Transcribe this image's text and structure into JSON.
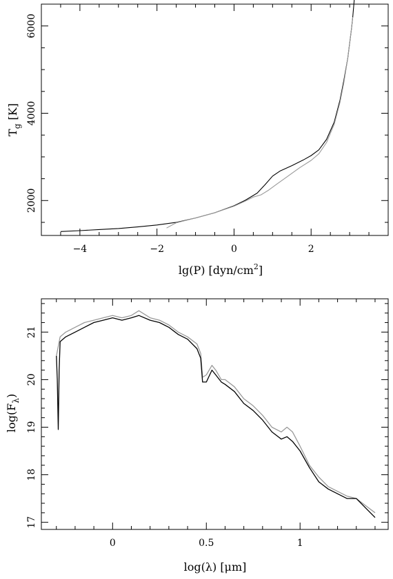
{
  "chart_data": [
    {
      "type": "line",
      "xlabel": "lg(P) [dyn/cm²]",
      "xlabel_parts": {
        "pre": "lg(P) [dyn/cm",
        "sup": "2",
        "post": "]"
      },
      "ylabel": "T_g [K]",
      "ylabel_parts": {
        "main": "T",
        "sub": "g",
        "unit": " [K]"
      },
      "xlim": [
        -5,
        4
      ],
      "ylim": [
        1200,
        6500
      ],
      "xticks_major": [
        -4,
        -2,
        0,
        2
      ],
      "xticks_minor_step": 0.5,
      "yticks_major": [
        2000,
        4000,
        6000
      ],
      "yticks_minor_step": 500,
      "series": [
        {
          "color": "#000000",
          "x": [
            -4.5,
            -4.0,
            -3.5,
            -3.0,
            -2.5,
            -2.0,
            -1.5,
            -1.0,
            -0.5,
            0.0,
            0.3,
            0.6,
            0.8,
            1.0,
            1.2,
            1.5,
            1.8,
            2.0,
            2.2,
            2.4,
            2.6,
            2.75,
            2.85,
            2.95,
            3.0,
            3.05,
            3.08,
            3.1,
            3.12
          ],
          "y": [
            1290,
            1310,
            1335,
            1360,
            1395,
            1440,
            1500,
            1600,
            1720,
            1880,
            2010,
            2170,
            2360,
            2560,
            2680,
            2800,
            2930,
            3030,
            3160,
            3400,
            3800,
            4300,
            4750,
            5250,
            5600,
            5950,
            6200,
            6400,
            6600
          ]
        },
        {
          "color": "#999999",
          "x": [
            -1.75,
            -1.5,
            -1.0,
            -0.5,
            0.0,
            0.3,
            0.5,
            0.7,
            0.9,
            1.1,
            1.4,
            1.7,
            2.0,
            2.2,
            2.4,
            2.6,
            2.75,
            2.85,
            2.95,
            3.0,
            3.05,
            3.08
          ],
          "y": [
            1370,
            1490,
            1600,
            1720,
            1870,
            1990,
            2080,
            2130,
            2240,
            2370,
            2560,
            2750,
            2920,
            3070,
            3330,
            3750,
            4250,
            4700,
            5250,
            5600,
            5950,
            6200
          ]
        }
      ]
    },
    {
      "type": "line",
      "xlabel": "log(λ) [μm]",
      "ylabel": "log(F_λ)",
      "ylabel_parts": {
        "pre": "log(F",
        "sub": "λ",
        "post": ")"
      },
      "xlim": [
        -0.38,
        1.47
      ],
      "ylim": [
        16.85,
        21.7
      ],
      "xticks_major": [
        0,
        0.5,
        1
      ],
      "xticks_minor_step": 0.1,
      "yticks_major": [
        17,
        18,
        19,
        20,
        21
      ],
      "yticks_minor_step": 0.2,
      "series": [
        {
          "color": "#999999",
          "x": [
            -0.3,
            -0.28,
            -0.25,
            -0.2,
            -0.15,
            -0.1,
            -0.05,
            0.0,
            0.05,
            0.1,
            0.14,
            0.2,
            0.25,
            0.3,
            0.35,
            0.4,
            0.45,
            0.47,
            0.48,
            0.5,
            0.53,
            0.55,
            0.58,
            0.6,
            0.65,
            0.7,
            0.75,
            0.8,
            0.85,
            0.9,
            0.93,
            0.96,
            1.0,
            1.05,
            1.1,
            1.15,
            1.2,
            1.25,
            1.3,
            1.35,
            1.4
          ],
          "y": [
            20.5,
            20.9,
            21.0,
            21.1,
            21.2,
            21.25,
            21.3,
            21.35,
            21.3,
            21.35,
            21.45,
            21.3,
            21.25,
            21.15,
            21.0,
            20.9,
            20.75,
            20.55,
            20.05,
            20.1,
            20.3,
            20.2,
            20.0,
            20.0,
            19.85,
            19.6,
            19.45,
            19.25,
            19.0,
            18.9,
            19.0,
            18.9,
            18.6,
            18.2,
            17.95,
            17.75,
            17.65,
            17.55,
            17.5,
            17.35,
            17.2
          ]
        },
        {
          "color": "#000000",
          "x": [
            -0.3,
            -0.295,
            -0.29,
            -0.285,
            -0.28,
            -0.25,
            -0.2,
            -0.15,
            -0.1,
            -0.05,
            0.0,
            0.05,
            0.1,
            0.14,
            0.2,
            0.25,
            0.3,
            0.35,
            0.4,
            0.45,
            0.47,
            0.48,
            0.5,
            0.53,
            0.55,
            0.58,
            0.6,
            0.65,
            0.7,
            0.75,
            0.8,
            0.85,
            0.9,
            0.93,
            0.96,
            1.0,
            1.05,
            1.1,
            1.15,
            1.2,
            1.25,
            1.3,
            1.35,
            1.4
          ],
          "y": [
            20.5,
            20.0,
            18.95,
            20.2,
            20.8,
            20.9,
            21.0,
            21.1,
            21.2,
            21.25,
            21.3,
            21.25,
            21.3,
            21.35,
            21.25,
            21.2,
            21.1,
            20.95,
            20.85,
            20.65,
            20.45,
            19.95,
            19.95,
            20.2,
            20.1,
            19.95,
            19.9,
            19.75,
            19.5,
            19.35,
            19.15,
            18.9,
            18.75,
            18.8,
            18.7,
            18.5,
            18.15,
            17.85,
            17.7,
            17.6,
            17.5,
            17.5,
            17.3,
            17.1
          ]
        }
      ]
    }
  ]
}
